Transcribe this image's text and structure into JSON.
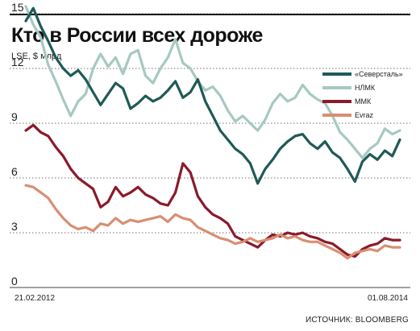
{
  "header": {
    "title": "Кто в России всех дороже",
    "subtitle": "LSE, $ млрд",
    "source": "ИСТОЧНИК: BLOOMBERG"
  },
  "chart_data": {
    "type": "line",
    "title": "Кто в России всех дороже",
    "subtitle": "LSE, $ млрд",
    "xlabel": "",
    "ylabel": "",
    "x_start_label": "21.02.2012",
    "x_end_label": "01.08.2014",
    "x": [
      0,
      0.02,
      0.04,
      0.06,
      0.08,
      0.1,
      0.12,
      0.14,
      0.16,
      0.18,
      0.2,
      0.22,
      0.24,
      0.26,
      0.28,
      0.3,
      0.32,
      0.34,
      0.36,
      0.38,
      0.4,
      0.42,
      0.44,
      0.46,
      0.48,
      0.5,
      0.52,
      0.54,
      0.56,
      0.58,
      0.6,
      0.62,
      0.64,
      0.66,
      0.68,
      0.7,
      0.72,
      0.74,
      0.76,
      0.78,
      0.8,
      0.82,
      0.84,
      0.86,
      0.88,
      0.9,
      0.92,
      0.94,
      0.96,
      0.98,
      1
    ],
    "ylim": [
      0,
      16
    ],
    "yticks": [
      0,
      3,
      6,
      9,
      12,
      15
    ],
    "grid": true,
    "legend_position": "top-right",
    "series": [
      {
        "name": "«Северсталь»",
        "color": "#1f5a57",
        "values": [
          14.6,
          15.3,
          14.3,
          13.5,
          12.6,
          12.0,
          11.6,
          11.9,
          11.4,
          10.7,
          10.0,
          10.6,
          11.2,
          10.9,
          9.8,
          10.1,
          10.5,
          10.2,
          10.4,
          10.8,
          11.3,
          10.4,
          10.7,
          11.4,
          10.2,
          9.4,
          8.6,
          8.1,
          7.6,
          7.3,
          6.8,
          5.7,
          6.5,
          7.0,
          7.6,
          8.0,
          8.3,
          8.4,
          7.9,
          7.6,
          8.0,
          7.4,
          7.1,
          6.5,
          5.8,
          6.9,
          7.3,
          7.0,
          7.5,
          7.2,
          8.1
        ]
      },
      {
        "name": "НЛМК",
        "color": "#a6c9c2",
        "values": [
          15.4,
          14.4,
          13.7,
          12.2,
          11.3,
          10.3,
          9.4,
          10.2,
          10.6,
          12.0,
          12.8,
          12.1,
          12.6,
          11.7,
          12.8,
          13.0,
          11.6,
          11.2,
          12.0,
          12.6,
          13.6,
          12.3,
          12.0,
          11.3,
          10.8,
          11.0,
          10.5,
          9.7,
          9.1,
          9.4,
          9.0,
          8.6,
          9.2,
          10.1,
          10.6,
          10.2,
          10.4,
          11.1,
          10.6,
          10.3,
          10.1,
          9.4,
          8.5,
          8.1,
          7.6,
          7.1,
          7.6,
          7.9,
          8.7,
          8.4,
          8.6
        ]
      },
      {
        "name": "ММК",
        "color": "#8a1a2a",
        "values": [
          8.6,
          8.9,
          8.5,
          8.3,
          7.7,
          7.2,
          6.5,
          6.0,
          5.7,
          5.4,
          4.4,
          4.7,
          5.5,
          5.0,
          5.2,
          5.5,
          5.1,
          4.9,
          4.6,
          4.5,
          5.2,
          6.8,
          6.3,
          5.0,
          4.4,
          4.0,
          3.8,
          3.5,
          2.8,
          2.6,
          2.4,
          2.2,
          2.6,
          2.9,
          2.8,
          3.0,
          2.9,
          3.0,
          2.8,
          2.7,
          2.5,
          2.4,
          2.1,
          1.8,
          1.7,
          2.1,
          2.3,
          2.4,
          2.7,
          2.6,
          2.6
        ]
      },
      {
        "name": "Evraz",
        "color": "#d98e72",
        "values": [
          5.6,
          5.5,
          5.2,
          4.9,
          4.3,
          3.8,
          3.4,
          3.2,
          3.3,
          3.1,
          3.5,
          3.4,
          3.8,
          3.5,
          3.7,
          3.6,
          3.7,
          3.8,
          3.9,
          3.6,
          4.0,
          3.8,
          3.7,
          3.3,
          3.1,
          2.9,
          2.7,
          2.6,
          2.4,
          2.5,
          2.7,
          2.5,
          2.6,
          2.7,
          2.9,
          2.7,
          2.8,
          2.6,
          2.5,
          2.5,
          2.3,
          2.1,
          1.9,
          1.6,
          1.9,
          2.0,
          2.1,
          2.0,
          2.3,
          2.2,
          2.2
        ]
      }
    ]
  }
}
